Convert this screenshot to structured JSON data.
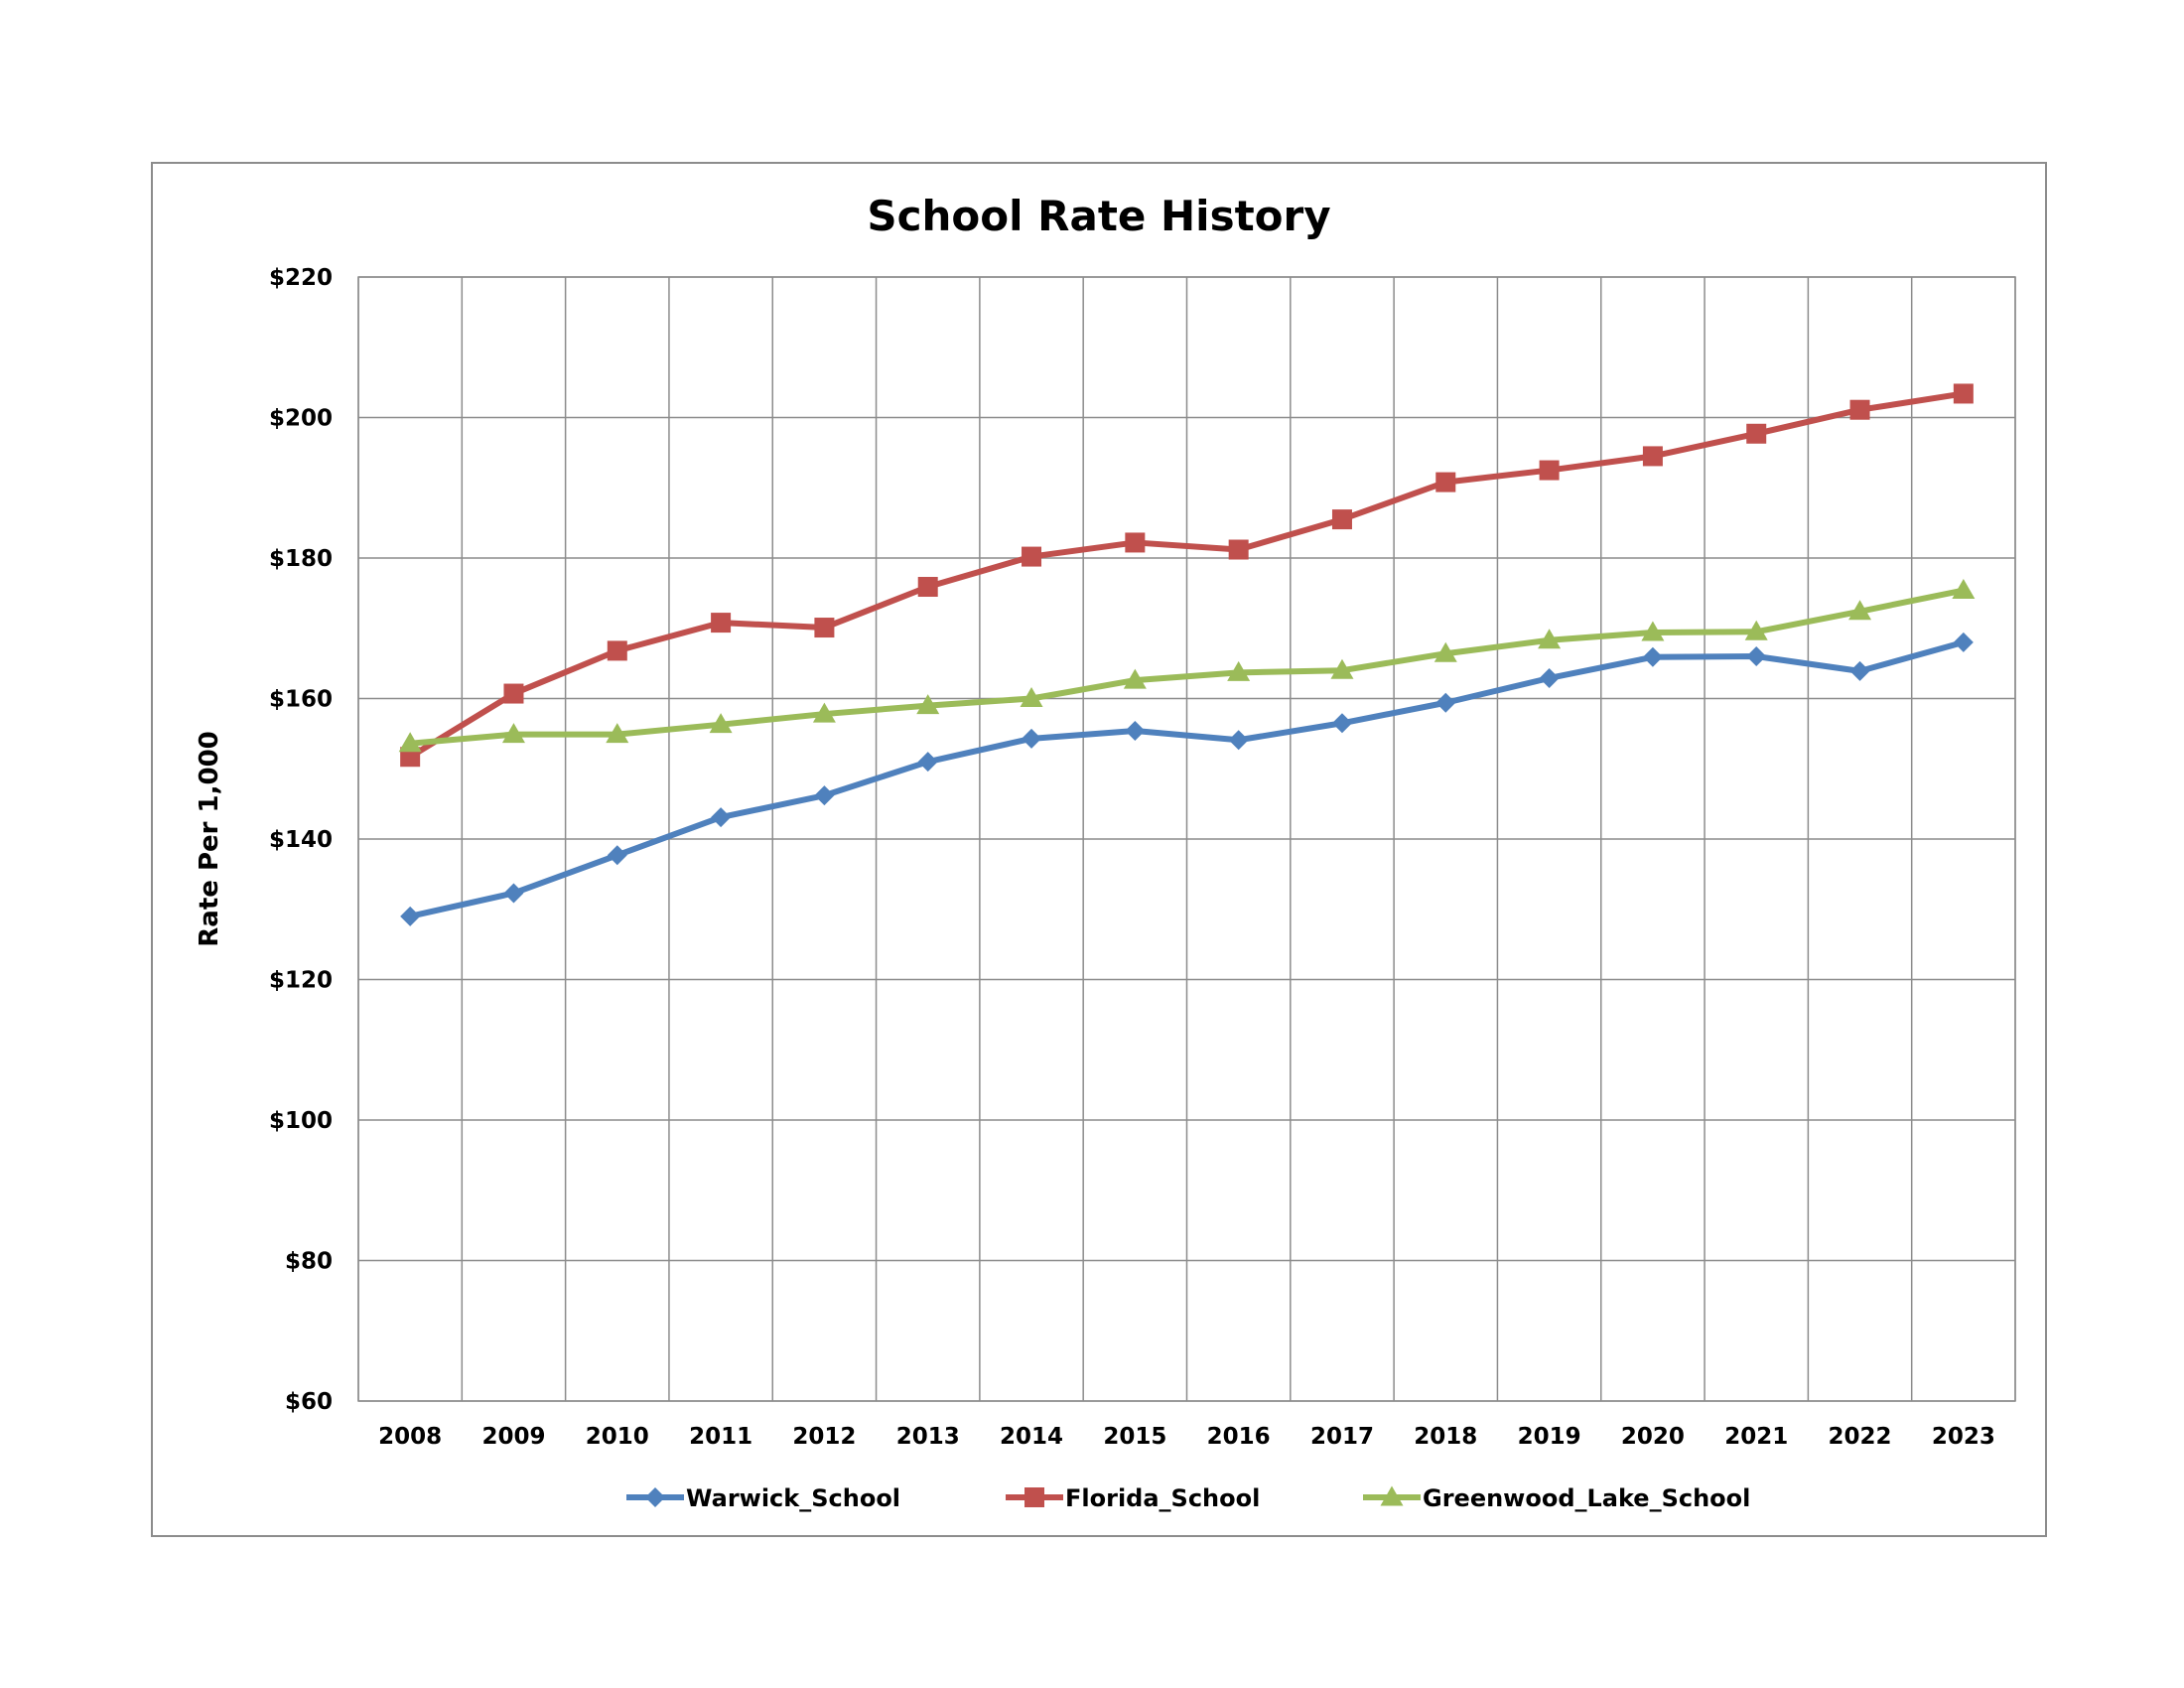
{
  "chart_data": {
    "type": "line",
    "title": "School Rate History",
    "xlabel": "",
    "ylabel": "Rate Per 1,000",
    "ylim": [
      60,
      220
    ],
    "ytick_step": 20,
    "y_tick_format": "$",
    "grid": true,
    "legend_position": "bottom",
    "categories": [
      "2008",
      "2009",
      "2010",
      "2011",
      "2012",
      "2013",
      "2014",
      "2015",
      "2016",
      "2017",
      "2018",
      "2019",
      "2020",
      "2021",
      "2022",
      "2023"
    ],
    "series": [
      {
        "name": "Warwick_School",
        "color": "#4f81bd",
        "marker": "diamond",
        "values": [
          129.0,
          132.3,
          137.7,
          143.1,
          146.2,
          151.0,
          154.3,
          155.4,
          154.1,
          156.5,
          159.4,
          162.9,
          165.9,
          166.0,
          163.9,
          168.0
        ]
      },
      {
        "name": "Florida_School",
        "color": "#c0504d",
        "marker": "square",
        "values": [
          151.7,
          160.7,
          166.8,
          170.8,
          170.1,
          175.9,
          180.2,
          182.2,
          181.2,
          185.5,
          190.8,
          192.5,
          194.5,
          197.7,
          201.1,
          203.4
        ]
      },
      {
        "name": "Greenwood_Lake_School",
        "color": "#9bbb59",
        "marker": "triangle",
        "values": [
          153.6,
          154.9,
          154.9,
          156.3,
          157.8,
          159.0,
          160.0,
          162.6,
          163.7,
          164.0,
          166.4,
          168.3,
          169.4,
          169.5,
          172.4,
          175.4
        ]
      }
    ]
  }
}
